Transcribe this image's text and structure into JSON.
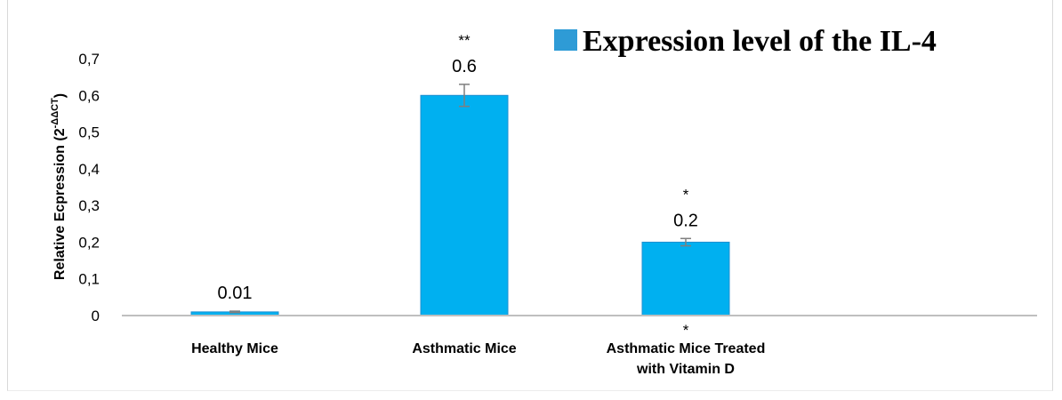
{
  "chart_data": {
    "type": "bar",
    "categories": [
      [
        "Healthy Mice"
      ],
      [
        "Asthmatic Mice"
      ],
      [
        "Asthmatic Mice Treated",
        "with Vitamin D"
      ]
    ],
    "series": [
      {
        "name": "Expression level of the IL-4",
        "values": [
          0.01,
          0.6,
          0.2
        ],
        "errors": [
          0.002,
          0.03,
          0.01
        ]
      }
    ],
    "data_labels": [
      "0.01",
      "0.6",
      "0.2"
    ],
    "significance": [
      {
        "above": "",
        "below": ""
      },
      {
        "above": "**",
        "below": ""
      },
      {
        "above": "*",
        "below": "*"
      }
    ],
    "ylabel": "Relative Ecpression (2",
    "ylabel_superscript": "-ΔΔCT",
    "ylabel_suffix": ")",
    "ylim": [
      0,
      0.7
    ],
    "yticks": [
      "0",
      "0,1",
      "0,2",
      "0,3",
      "0,4",
      "0,5",
      "0,6",
      "0,7"
    ],
    "grid": false,
    "legend_position": "top-right",
    "colors": {
      "bar": "#00b0f0",
      "bar_edge": "#1f8fd0",
      "legend_swatch": "#2e9bd6",
      "axis": "#bfbfbf",
      "errorbar": "#7f7f7f"
    }
  }
}
